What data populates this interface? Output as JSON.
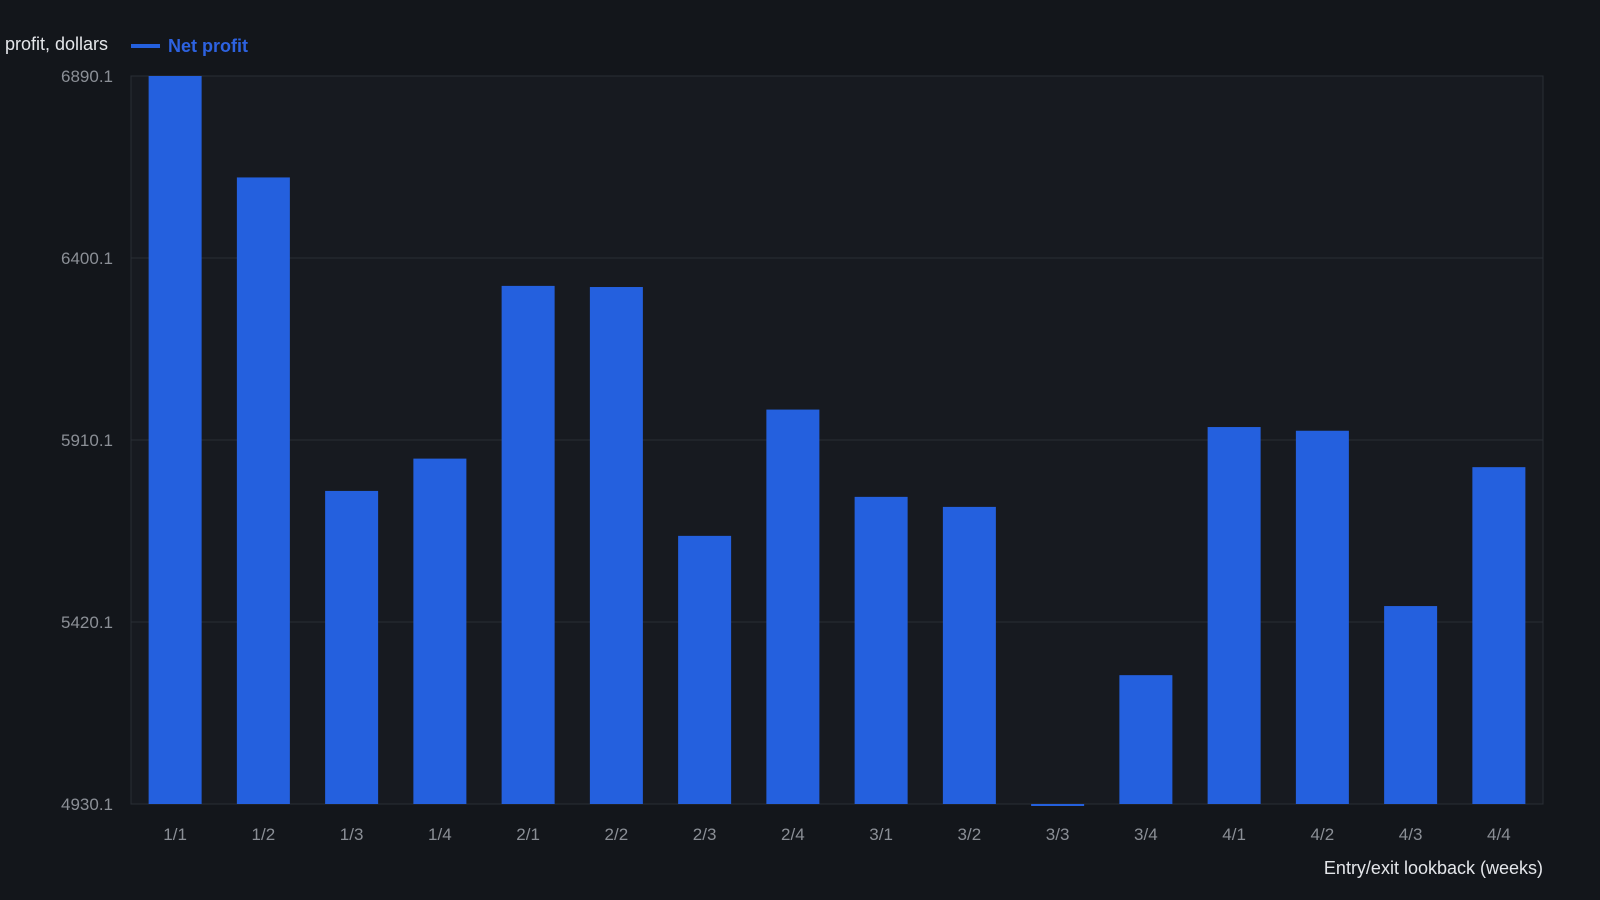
{
  "chart_data": {
    "type": "bar",
    "ylabel": "profit, dollars",
    "xlabel": "Entry/exit lookback (weeks)",
    "categories": [
      "1/1",
      "1/2",
      "1/3",
      "1/4",
      "2/1",
      "2/2",
      "2/3",
      "2/4",
      "3/1",
      "3/2",
      "3/3",
      "3/4",
      "4/1",
      "4/2",
      "4/3",
      "4/4"
    ],
    "series": [
      {
        "name": "Net profit",
        "values": [
          6890.1,
          6617,
          5773,
          5860,
          6325,
          6322,
          5652,
          5992,
          5757,
          5730,
          4925,
          5277,
          5945,
          5935,
          5463,
          5837
        ]
      }
    ],
    "ylim": [
      4930.1,
      6890.1
    ],
    "yticks": [
      4930.1,
      5420.1,
      5910.1,
      6400.1,
      6890.1
    ],
    "ytick_labels": [
      "4930.1",
      "5420.1",
      "5910.1",
      "6400.1",
      "6890.1"
    ],
    "grid": true,
    "legend_position": "top-left",
    "bar_color": "#2460de",
    "background_color": "#13161b",
    "grid_color": "#2a2e35"
  }
}
